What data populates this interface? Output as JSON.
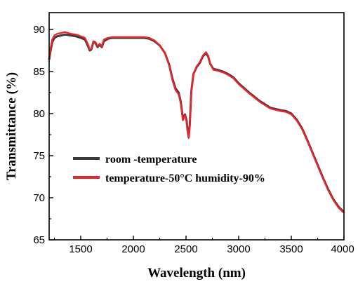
{
  "chart_data": {
    "type": "line",
    "xlabel": "Wavelength (nm)",
    "ylabel": "Transmittance (%)",
    "xlim": [
      1200,
      4000
    ],
    "ylim": [
      65,
      92
    ],
    "x_ticks": [
      1500,
      2000,
      2500,
      3000,
      3500,
      4000
    ],
    "y_ticks": [
      65,
      70,
      75,
      80,
      85,
      90
    ],
    "legend_position": "lower-left",
    "series": [
      {
        "name": "room -temperature",
        "color": "#3a3a3a",
        "points": [
          [
            1200,
            86.4
          ],
          [
            1215,
            87.6
          ],
          [
            1230,
            88.5
          ],
          [
            1250,
            89.0
          ],
          [
            1280,
            89.2
          ],
          [
            1320,
            89.3
          ],
          [
            1350,
            89.4
          ],
          [
            1400,
            89.3
          ],
          [
            1450,
            89.2
          ],
          [
            1500,
            89.0
          ],
          [
            1540,
            88.8
          ],
          [
            1570,
            88.0
          ],
          [
            1585,
            87.5
          ],
          [
            1600,
            87.6
          ],
          [
            1620,
            88.5
          ],
          [
            1640,
            88.4
          ],
          [
            1660,
            87.9
          ],
          [
            1680,
            88.2
          ],
          [
            1700,
            87.9
          ],
          [
            1720,
            88.6
          ],
          [
            1760,
            88.9
          ],
          [
            1800,
            89.0
          ],
          [
            1900,
            89.0
          ],
          [
            2000,
            89.0
          ],
          [
            2100,
            89.0
          ],
          [
            2150,
            88.9
          ],
          [
            2200,
            88.6
          ],
          [
            2250,
            88.1
          ],
          [
            2300,
            87.2
          ],
          [
            2340,
            85.8
          ],
          [
            2370,
            84.2
          ],
          [
            2400,
            83.0
          ],
          [
            2430,
            82.5
          ],
          [
            2450,
            81.4
          ],
          [
            2470,
            79.4
          ],
          [
            2490,
            79.9
          ],
          [
            2505,
            79.2
          ],
          [
            2515,
            78.0
          ],
          [
            2525,
            77.2
          ],
          [
            2535,
            78.6
          ],
          [
            2550,
            82.6
          ],
          [
            2570,
            84.7
          ],
          [
            2600,
            85.5
          ],
          [
            2630,
            86.0
          ],
          [
            2660,
            86.8
          ],
          [
            2690,
            87.2
          ],
          [
            2710,
            86.8
          ],
          [
            2730,
            85.9
          ],
          [
            2760,
            85.3
          ],
          [
            2800,
            85.2
          ],
          [
            2850,
            85.0
          ],
          [
            2900,
            84.7
          ],
          [
            2950,
            84.3
          ],
          [
            3000,
            83.6
          ],
          [
            3100,
            82.5
          ],
          [
            3200,
            81.5
          ],
          [
            3300,
            80.7
          ],
          [
            3400,
            80.4
          ],
          [
            3450,
            80.3
          ],
          [
            3500,
            80.0
          ],
          [
            3550,
            79.3
          ],
          [
            3600,
            78.3
          ],
          [
            3650,
            76.9
          ],
          [
            3700,
            75.4
          ],
          [
            3750,
            73.9
          ],
          [
            3800,
            72.4
          ],
          [
            3850,
            71.0
          ],
          [
            3900,
            69.8
          ],
          [
            3950,
            68.9
          ],
          [
            4000,
            68.3
          ]
        ]
      },
      {
        "name": "temperature-50°C  humidity-90%",
        "color": "#e8262b",
        "points": [
          [
            1200,
            86.6
          ],
          [
            1215,
            87.9
          ],
          [
            1230,
            88.8
          ],
          [
            1250,
            89.3
          ],
          [
            1280,
            89.5
          ],
          [
            1320,
            89.6
          ],
          [
            1350,
            89.7
          ],
          [
            1400,
            89.5
          ],
          [
            1450,
            89.4
          ],
          [
            1500,
            89.2
          ],
          [
            1540,
            89.0
          ],
          [
            1570,
            88.2
          ],
          [
            1585,
            87.6
          ],
          [
            1600,
            87.7
          ],
          [
            1620,
            88.6
          ],
          [
            1640,
            88.5
          ],
          [
            1660,
            88.0
          ],
          [
            1680,
            88.3
          ],
          [
            1700,
            88.0
          ],
          [
            1720,
            88.8
          ],
          [
            1760,
            89.0
          ],
          [
            1800,
            89.1
          ],
          [
            1900,
            89.1
          ],
          [
            2000,
            89.1
          ],
          [
            2100,
            89.1
          ],
          [
            2150,
            89.0
          ],
          [
            2200,
            88.7
          ],
          [
            2250,
            88.1
          ],
          [
            2300,
            87.2
          ],
          [
            2340,
            85.7
          ],
          [
            2370,
            84.0
          ],
          [
            2400,
            82.8
          ],
          [
            2430,
            82.3
          ],
          [
            2450,
            81.2
          ],
          [
            2470,
            79.2
          ],
          [
            2490,
            79.8
          ],
          [
            2505,
            79.0
          ],
          [
            2515,
            77.8
          ],
          [
            2525,
            77.1
          ],
          [
            2535,
            78.5
          ],
          [
            2550,
            82.5
          ],
          [
            2570,
            84.7
          ],
          [
            2600,
            85.6
          ],
          [
            2630,
            86.1
          ],
          [
            2660,
            86.9
          ],
          [
            2690,
            87.3
          ],
          [
            2710,
            86.9
          ],
          [
            2730,
            85.9
          ],
          [
            2760,
            85.2
          ],
          [
            2800,
            85.1
          ],
          [
            2850,
            84.9
          ],
          [
            2900,
            84.6
          ],
          [
            2950,
            84.2
          ],
          [
            3000,
            83.5
          ],
          [
            3100,
            82.4
          ],
          [
            3200,
            81.4
          ],
          [
            3300,
            80.6
          ],
          [
            3400,
            80.3
          ],
          [
            3450,
            80.2
          ],
          [
            3500,
            79.9
          ],
          [
            3550,
            79.2
          ],
          [
            3600,
            78.2
          ],
          [
            3650,
            76.8
          ],
          [
            3700,
            75.3
          ],
          [
            3750,
            73.8
          ],
          [
            3800,
            72.3
          ],
          [
            3850,
            70.9
          ],
          [
            3900,
            69.7
          ],
          [
            3950,
            68.8
          ],
          [
            4000,
            68.2
          ]
        ]
      }
    ]
  }
}
